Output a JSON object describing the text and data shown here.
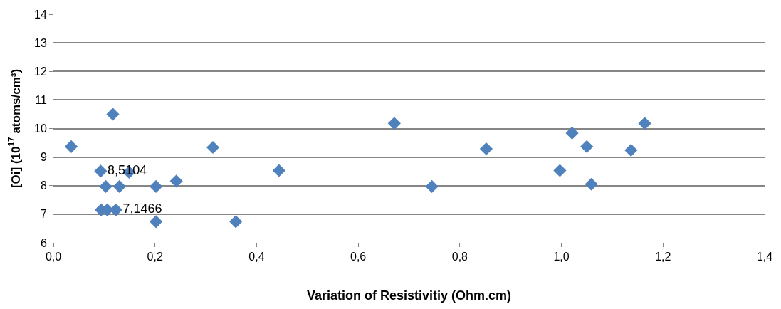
{
  "chart_data": {
    "type": "scatter",
    "xlabel": "Variation of Resistivitiy (Ohm.cm)",
    "ylabel": "[Oi] (10$^{17}$ atoms/cm³)",
    "x": [
      0.035,
      0.117,
      0.093,
      0.149,
      0.103,
      0.13,
      0.202,
      0.242,
      0.094,
      0.106,
      0.123,
      0.202,
      0.359,
      0.314,
      0.444,
      0.671,
      0.745,
      0.852,
      0.997,
      1.021,
      1.05,
      1.059,
      1.137,
      1.164
    ],
    "series": [
      {
        "color": "#4f81bd",
        "values": [
          9.37,
          10.5,
          8.51,
          8.47,
          7.97,
          7.97,
          7.97,
          8.16,
          7.15,
          7.15,
          7.15,
          6.74,
          6.74,
          9.34,
          8.53,
          10.18,
          7.97,
          9.29,
          8.53,
          9.84,
          9.37,
          8.05,
          9.24,
          10.18
        ],
        "value_labels": [
          null,
          null,
          "8,5104",
          null,
          null,
          null,
          null,
          null,
          null,
          null,
          "7,1466",
          null,
          null,
          null,
          null,
          null,
          null,
          null,
          null,
          null,
          null,
          null,
          null,
          null
        ]
      }
    ],
    "xlim": [
      0,
      1.4
    ],
    "xticks": [
      {
        "value": 0,
        "label": "0,0"
      },
      {
        "value": 0.2,
        "label": "0,2"
      },
      {
        "value": 0.4,
        "label": "0,4"
      },
      {
        "value": 0.6,
        "label": "0,6"
      },
      {
        "value": 0.8,
        "label": "0,8"
      },
      {
        "value": 1.0,
        "label": "1,0"
      },
      {
        "value": 1.2,
        "label": "1,2"
      },
      {
        "value": 1.4,
        "label": "1,4"
      }
    ],
    "ylim": [
      6,
      14
    ],
    "yticks": [
      6,
      7,
      8,
      9,
      10,
      11,
      12,
      13,
      14
    ],
    "grid": "y",
    "marker": "diamond"
  }
}
